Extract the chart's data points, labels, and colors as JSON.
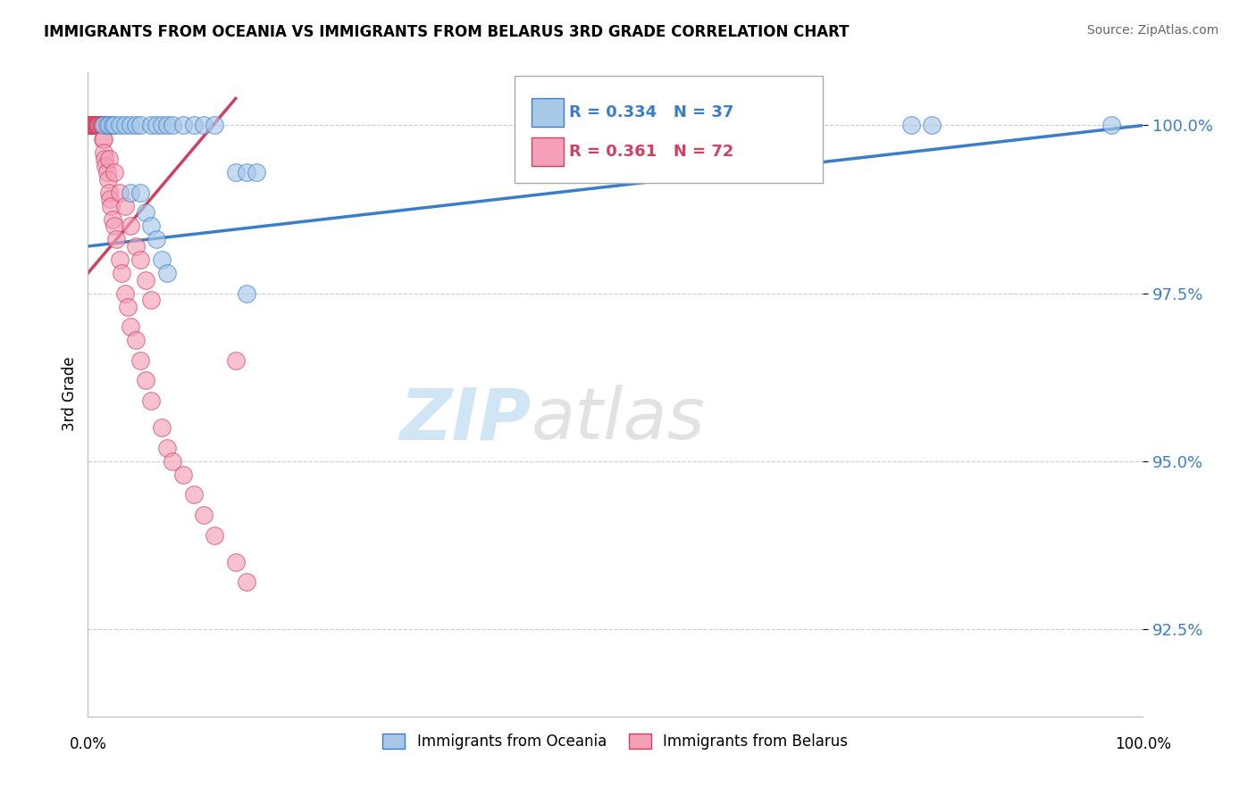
{
  "title": "IMMIGRANTS FROM OCEANIA VS IMMIGRANTS FROM BELARUS 3RD GRADE CORRELATION CHART",
  "source_text": "Source: ZipAtlas.com",
  "ylabel": "3rd Grade",
  "ytick_labels": [
    "92.5%",
    "95.0%",
    "97.5%",
    "100.0%"
  ],
  "ytick_values": [
    92.5,
    95.0,
    97.5,
    100.0
  ],
  "xmin": 0.0,
  "xmax": 100.0,
  "ymin": 91.2,
  "ymax": 100.8,
  "blue_color": "#A8C8E8",
  "blue_color_line": "#3A7DC9",
  "pink_color": "#F4A0B8",
  "pink_color_line": "#D04060",
  "legend_R_blue": "R = 0.334",
  "legend_N_blue": "N = 37",
  "legend_R_pink": "R = 0.361",
  "legend_N_pink": "N = 72",
  "watermark_zip": "ZIP",
  "watermark_atlas": "atlas",
  "legend1": "Immigrants from Oceania",
  "legend2": "Immigrants from Belarus",
  "blue_x": [
    1.5,
    1.8,
    2.0,
    2.3,
    2.5,
    3.0,
    3.5,
    4.0,
    4.5,
    5.0,
    6.0,
    6.5,
    7.0,
    7.5,
    8.0,
    9.0,
    10.0,
    11.0,
    12.0,
    14.0,
    15.0,
    16.0,
    4.0,
    5.0,
    5.5,
    6.0,
    6.5,
    7.0,
    7.5,
    60.0,
    63.0,
    65.0,
    68.0,
    78.0,
    80.0,
    97.0,
    15.0
  ],
  "blue_y": [
    100.0,
    100.0,
    100.0,
    100.0,
    100.0,
    100.0,
    100.0,
    100.0,
    100.0,
    100.0,
    100.0,
    100.0,
    100.0,
    100.0,
    100.0,
    100.0,
    100.0,
    100.0,
    100.0,
    99.3,
    99.3,
    99.3,
    99.0,
    99.0,
    98.7,
    98.5,
    98.3,
    98.0,
    97.8,
    100.0,
    100.0,
    100.0,
    100.0,
    100.0,
    100.0,
    100.0,
    97.5
  ],
  "pink_x": [
    0.2,
    0.2,
    0.2,
    0.3,
    0.3,
    0.3,
    0.4,
    0.4,
    0.4,
    0.5,
    0.5,
    0.5,
    0.5,
    0.6,
    0.6,
    0.7,
    0.7,
    0.8,
    0.8,
    0.9,
    0.9,
    1.0,
    1.0,
    1.0,
    1.1,
    1.1,
    1.2,
    1.2,
    1.3,
    1.3,
    1.4,
    1.4,
    1.5,
    1.5,
    1.6,
    1.7,
    1.8,
    1.9,
    2.0,
    2.1,
    2.2,
    2.3,
    2.5,
    2.7,
    3.0,
    3.2,
    3.5,
    3.8,
    4.0,
    4.5,
    5.0,
    5.5,
    6.0,
    7.0,
    7.5,
    8.0,
    9.0,
    10.0,
    11.0,
    12.0,
    14.0,
    15.0,
    2.0,
    2.5,
    3.0,
    3.5,
    4.0,
    4.5,
    5.0,
    5.5,
    6.0,
    14.0
  ],
  "pink_y": [
    100.0,
    100.0,
    100.0,
    100.0,
    100.0,
    100.0,
    100.0,
    100.0,
    100.0,
    100.0,
    100.0,
    100.0,
    100.0,
    100.0,
    100.0,
    100.0,
    100.0,
    100.0,
    100.0,
    100.0,
    100.0,
    100.0,
    100.0,
    100.0,
    100.0,
    100.0,
    100.0,
    100.0,
    100.0,
    100.0,
    100.0,
    99.8,
    99.8,
    99.6,
    99.5,
    99.4,
    99.3,
    99.2,
    99.0,
    98.9,
    98.8,
    98.6,
    98.5,
    98.3,
    98.0,
    97.8,
    97.5,
    97.3,
    97.0,
    96.8,
    96.5,
    96.2,
    95.9,
    95.5,
    95.2,
    95.0,
    94.8,
    94.5,
    94.2,
    93.9,
    93.5,
    93.2,
    99.5,
    99.3,
    99.0,
    98.8,
    98.5,
    98.2,
    98.0,
    97.7,
    97.4,
    96.5
  ],
  "blue_trend_x": [
    0,
    100
  ],
  "blue_trend_y": [
    98.2,
    100.0
  ],
  "pink_trend_x": [
    0,
    14
  ],
  "pink_trend_y": [
    97.8,
    100.4
  ]
}
